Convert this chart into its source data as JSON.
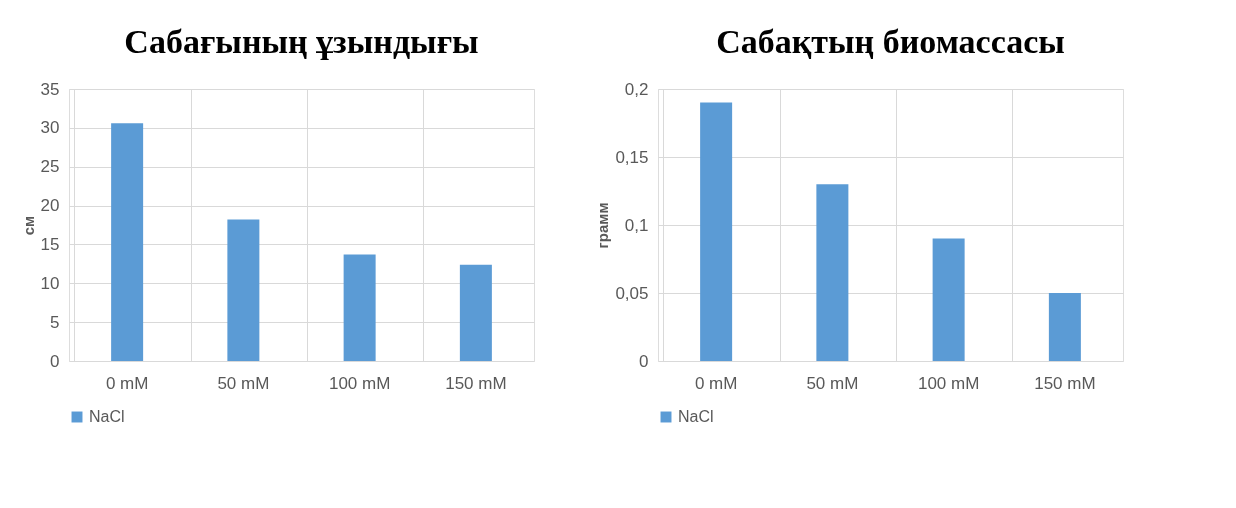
{
  "chart_data": [
    {
      "type": "bar",
      "title": "Сабағының ұзындығы",
      "ylabel": "см",
      "categories": [
        "0 mM",
        "50 mM",
        "100 mM",
        "150 mM"
      ],
      "series": [
        {
          "name": "NaCl",
          "color": "#5b9bd5",
          "values": [
            30.6,
            18.2,
            13.7,
            12.4
          ]
        }
      ],
      "ylim": [
        0,
        35
      ],
      "yticks": [
        0,
        5,
        10,
        15,
        20,
        25,
        30,
        35
      ],
      "grid": true,
      "legend": "bottom"
    },
    {
      "type": "bar",
      "title": "Сабақтың биомассасы",
      "ylabel": "грамм",
      "categories": [
        "0 mM",
        "50 mM",
        "100 mM",
        "150 mM"
      ],
      "series": [
        {
          "name": "NaCl",
          "color": "#5b9bd5",
          "values": [
            0.19,
            0.13,
            0.09,
            0.05
          ]
        }
      ],
      "ylim": [
        0,
        0.2
      ],
      "yticks": [
        0,
        {
          "value": 0.05,
          "label": "0,05"
        },
        {
          "value": 0.1,
          "label": "0,1"
        },
        {
          "value": 0.15,
          "label": "0,15"
        },
        {
          "value": 0.2,
          "label": "0,2"
        }
      ],
      "grid": true,
      "legend": "bottom"
    }
  ]
}
